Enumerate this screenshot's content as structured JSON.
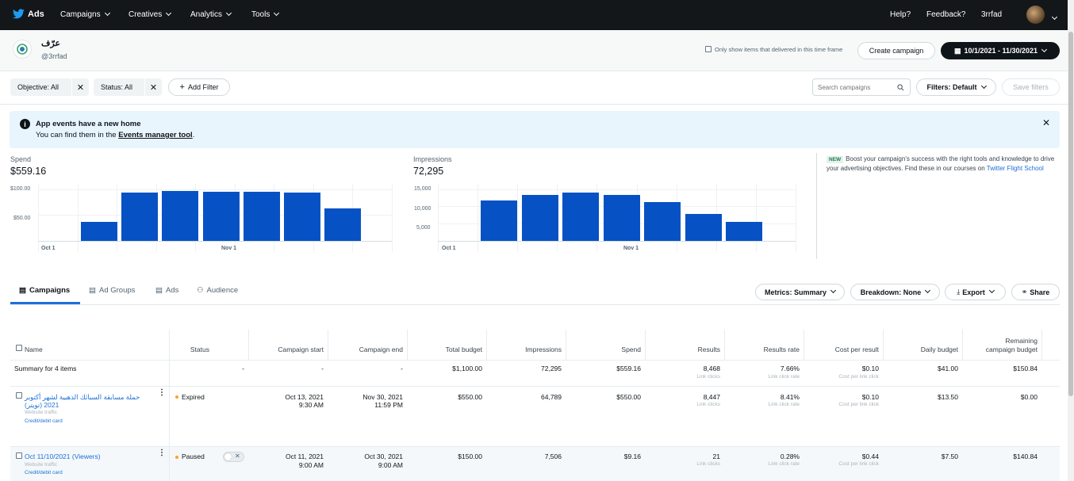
{
  "nav": {
    "brand": "Ads",
    "menus": [
      "Campaigns",
      "Creatives",
      "Analytics",
      "Tools"
    ],
    "help": "Help?",
    "feedback": "Feedback?",
    "account": "3rrfad"
  },
  "account": {
    "name": "عرّف",
    "handle": "@3rrfad"
  },
  "header": {
    "only_delivered_label": "Only show items that delivered in this time frame",
    "create_campaign": "Create campaign",
    "date_range": "10/1/2021 - 11/30/2021"
  },
  "filters": {
    "objective": "Objective: All",
    "status": "Status: All",
    "add_filter": "Add Filter",
    "search_placeholder": "Search campaigns",
    "filters_default": "Filters: Default",
    "save_filters": "Save filters"
  },
  "banner": {
    "title": "App events have a new home",
    "text_before": "You can find them in the ",
    "link": "Events manager tool",
    "text_after": "."
  },
  "spend_chart": {
    "label": "Spend",
    "total": "$559.16",
    "y_ticks": [
      "$100.00",
      "$50.00"
    ],
    "x_ticks": [
      "Oct 1",
      "Nov 1"
    ]
  },
  "impressions_chart": {
    "label": "Impressions",
    "total": "72,295",
    "y_ticks": [
      "15,000",
      "10,000",
      "5,000"
    ],
    "x_ticks": [
      "Oct 1",
      "Nov 1"
    ]
  },
  "chart_data": [
    {
      "type": "bar",
      "title": "Spend",
      "x_ticks": [
        "Oct 1",
        "Nov 1"
      ],
      "values": [
        36,
        93,
        96,
        94,
        95,
        93,
        62
      ],
      "ylim": [
        0,
        110
      ],
      "y_ticks": [
        50,
        100
      ]
    },
    {
      "type": "bar",
      "title": "Impressions",
      "x_ticks": [
        "Oct 1",
        "Nov 1"
      ],
      "values": [
        11700,
        13400,
        14000,
        13200,
        11300,
        7900,
        5400
      ],
      "ylim": [
        0,
        16500
      ],
      "y_ticks": [
        5000,
        10000,
        15000
      ]
    }
  ],
  "promo": {
    "badge": "NEW",
    "text": "Boost your campaign's success with the right tools and knowledge to drive your advertising objectives. Find these in our courses on ",
    "link": "Twitter Flight School"
  },
  "tabs": [
    "Campaigns",
    "Ad Groups",
    "Ads",
    "Audience"
  ],
  "toolbar": {
    "metrics": "Metrics: Summary",
    "breakdown": "Breakdown: None",
    "export": "Export",
    "share": "Share"
  },
  "table": {
    "columns": [
      "Name",
      "Status",
      "Campaign start",
      "Campaign end",
      "Total budget",
      "Impressions",
      "Spend",
      "Results",
      "Results rate",
      "Cost per result",
      "Daily budget",
      "Remaining",
      "campaign budget"
    ],
    "summary": {
      "label": "Summary for 4 items",
      "status": "-",
      "start": "-",
      "end": "-",
      "total_budget": "$1,100.00",
      "impressions": "72,295",
      "spend": "$559.16",
      "results": "8,468",
      "results_sub": "Link clicks",
      "rate": "7.66%",
      "rate_sub": "Link click rate",
      "cpr": "$0.10",
      "cpr_sub": "Cost per link click",
      "daily": "$41.00",
      "remaining": "$150.84"
    },
    "rows": [
      {
        "name": "حملة مسابقة السبائك الذهبية لشهر أكتوبر 2021 (تويتر)",
        "type": "Website traffic",
        "payment": "Credit/debit card",
        "status": "Expired",
        "start": "Oct 13, 2021",
        "start_time": "9:30 AM",
        "end": "Nov 30, 2021",
        "end_time": "11:59 PM",
        "total_budget": "$550.00",
        "impressions": "64,789",
        "spend": "$550.00",
        "results": "8,447",
        "results_sub": "Link clicks",
        "rate": "8.41%",
        "rate_sub": "Link click rate",
        "cpr": "$0.10",
        "cpr_sub": "Cost per link click",
        "daily": "$13.50",
        "remaining": "$0.00"
      },
      {
        "name": "Oct 11/10/2021 (Viewers)",
        "type": "Website traffic",
        "payment": "Credit/debit card",
        "status": "Paused",
        "start": "Oct 11, 2021",
        "start_time": "9:00 AM",
        "end": "Oct 30, 2021",
        "end_time": "9:00 AM",
        "total_budget": "$150.00",
        "impressions": "7,506",
        "spend": "$9.16",
        "results": "21",
        "results_sub": "Link clicks",
        "rate": "0.28%",
        "rate_sub": "Link click rate",
        "cpr": "$0.44",
        "cpr_sub": "Cost per link click",
        "daily": "$7.50",
        "remaining": "$140.84"
      }
    ]
  },
  "colors": {
    "nav_bg": "#14171a",
    "bar": "#0652c4",
    "link": "#1d70d9",
    "expired_dot": "#f5a623",
    "paused_dot": "#f5a623"
  }
}
